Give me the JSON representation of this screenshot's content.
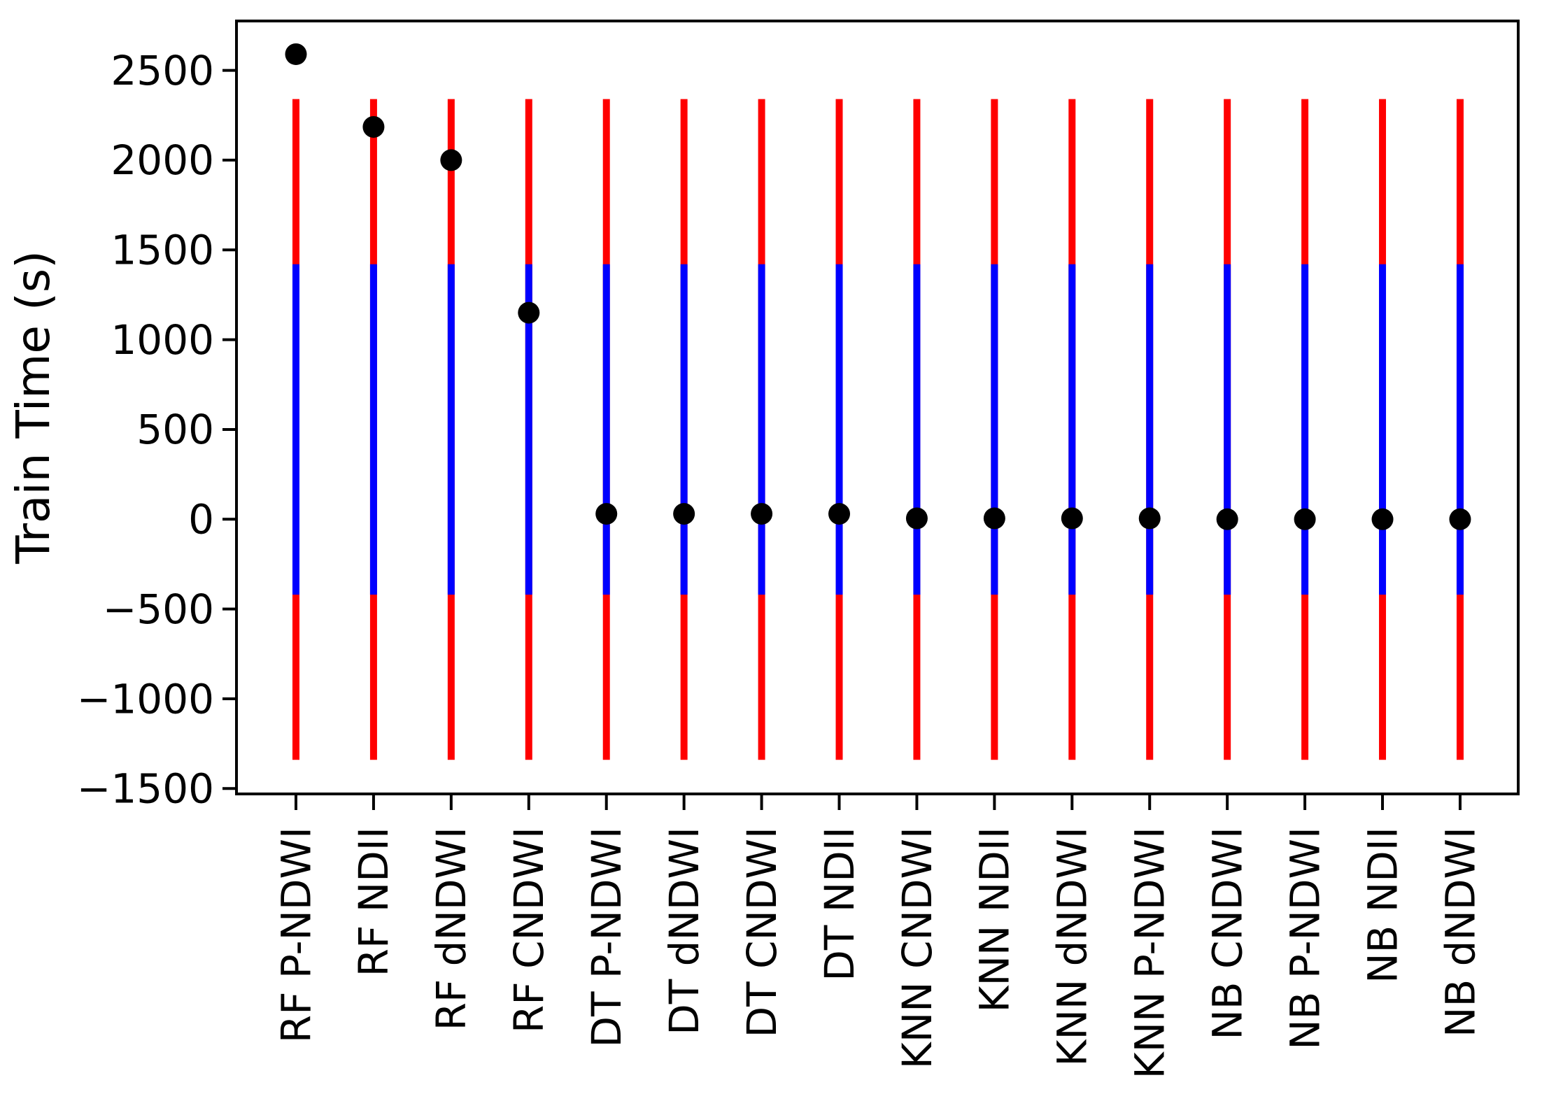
{
  "figure": {
    "background": "#ffffff",
    "frame_color": "#000000"
  },
  "chart_data": {
    "type": "scatter",
    "title": "",
    "xlabel": "",
    "ylabel": "Train Time (s)",
    "categories": [
      "RF P-NDWI",
      "RF NDII",
      "RF dNDWI",
      "RF CNDWI",
      "DT P-NDWI",
      "DT dNDWI",
      "DT CNDWI",
      "DT NDII",
      "KNN CNDWI",
      "KNN NDII",
      "KNN dNDWI",
      "KNN P-NDWI",
      "NB CNDWI",
      "NB P-NDWI",
      "NB NDII",
      "NB dNDWI"
    ],
    "series": [
      {
        "name": "train-time",
        "marker": "circle",
        "color": "#000000",
        "values": [
          2590,
          2185,
          2000,
          1150,
          30,
          30,
          30,
          30,
          5,
          5,
          5,
          5,
          0,
          0,
          0,
          0
        ]
      }
    ],
    "error_bars": {
      "applies_to": "all-categories",
      "outer": {
        "color": "#ff0000",
        "low": -1340,
        "high": 2340
      },
      "inner": {
        "color": "#0000ff",
        "low": -420,
        "high": 1420
      }
    },
    "yticks": [
      -1500,
      -1000,
      -500,
      0,
      500,
      1000,
      1500,
      2000,
      2500
    ],
    "ytick_labels": [
      "−1500",
      "−1000",
      "−500",
      "0",
      "500",
      "1000",
      "1500",
      "2000",
      "2500"
    ],
    "ylim": [
      -1530,
      2775
    ],
    "grid": false,
    "legend": false
  }
}
